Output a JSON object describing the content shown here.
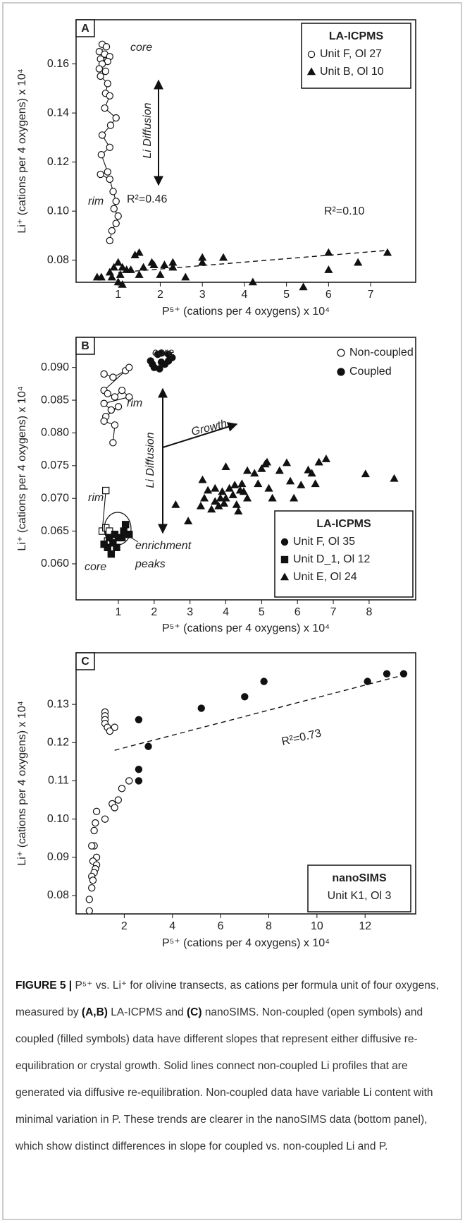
{
  "caption": {
    "label": "FIGURE 5 |",
    "text1": "P⁵⁺ vs. Li⁺ for olivine transects, as cations per formula unit of four oxygens, measured by",
    "bold1": "(A,B)",
    "text2": "LA-ICPMS and",
    "bold2": "(C)",
    "text3": "nanoSIMS. Non-coupled (open symbols) and coupled (filled symbols) data have different slopes that represent either diffusive re-equilibration or crystal growth. Solid lines connect non-coupled Li profiles that are generated via diffusive re-equilibration. Non-coupled data have variable Li content with minimal variation in P. These trends are clearer in the nanoSIMS data (bottom panel), which show distinct differences in slope for coupled vs. non-coupled Li and P."
  },
  "chart_data": [
    {
      "type": "scatter",
      "panel_label": "A",
      "x_label": "P⁵⁺ (cations per 4 oxygens) x 10⁴",
      "y_label": "Li⁺ (cations per 4 oxygens) x 10⁴",
      "xlim": [
        0,
        8.07
      ],
      "ylim": [
        0.071,
        0.178
      ],
      "xticks": [
        1,
        2,
        3,
        4,
        5,
        6,
        7
      ],
      "yticks": [
        0.08,
        {
          "value": 0.1,
          "label": "0.10"
        },
        0.12,
        0.14,
        0.16
      ],
      "legend": {
        "title": "LA-ICPMS",
        "markers": true
      },
      "series": [
        {
          "name": "Unit F, Ol 27",
          "marker": "circle",
          "connect_open": true,
          "open": {
            "x": [
              0.62,
              0.72,
              0.55,
              0.68,
              0.8,
              0.58,
              0.75,
              0.62,
              0.55,
              0.7,
              0.58,
              0.75,
              0.7,
              0.8,
              0.68,
              0.95,
              0.82,
              0.62,
              0.8,
              0.6,
              0.75,
              0.58,
              0.8,
              0.88,
              0.95,
              0.9,
              1.0,
              0.95,
              0.85,
              0.8
            ],
            "y": [
              0.168,
              0.167,
              0.165,
              0.164,
              0.163,
              0.162,
              0.161,
              0.16,
              0.158,
              0.157,
              0.155,
              0.152,
              0.148,
              0.147,
              0.142,
              0.138,
              0.135,
              0.131,
              0.126,
              0.123,
              0.116,
              0.115,
              0.113,
              0.108,
              0.104,
              0.101,
              0.098,
              0.095,
              0.092,
              0.088
            ]
          }
        },
        {
          "name": "Unit B, Ol 10",
          "marker": "triangle",
          "filled": {
            "x": [
              0.5,
              0.6,
              0.8,
              0.85,
              0.9,
              1.0,
              1.0,
              1.05,
              1.1,
              1.2,
              1.1,
              1.3,
              1.4,
              1.5,
              1.6,
              1.5,
              1.8,
              1.85,
              2.0,
              2.1,
              2.3,
              2.3,
              2.6,
              3.0,
              3.0,
              3.5,
              4.2,
              5.4,
              6.0,
              6.0,
              6.7,
              7.4
            ],
            "y": [
              0.073,
              0.073,
              0.075,
              0.073,
              0.077,
              0.079,
              0.071,
              0.074,
              0.077,
              0.076,
              0.07,
              0.076,
              0.082,
              0.083,
              0.077,
              0.074,
              0.079,
              0.078,
              0.074,
              0.078,
              0.079,
              0.077,
              0.073,
              0.081,
              0.079,
              0.081,
              0.071,
              0.069,
              0.083,
              0.076,
              0.079,
              0.083
            ]
          }
        }
      ],
      "trend": {
        "x": [
          1.0,
          7.4
        ],
        "y": [
          0.075,
          0.084
        ]
      },
      "annotations": [
        "core",
        "rim",
        "R²=0.46",
        "R²=0.10",
        "Li Diffusion"
      ]
    },
    {
      "type": "scatter",
      "panel_label": "B",
      "x_label": "P⁵⁺ (cations per 4 oxygens) x 10⁴",
      "y_label": "Li⁺ (cations per 4 oxygens) x 10⁴",
      "xlim": [
        -0.18,
        9.3
      ],
      "ylim": [
        0.0545,
        0.0946
      ],
      "xticks": [
        1,
        2,
        3,
        4,
        5,
        6,
        7,
        8
      ],
      "yticks": [
        {
          "value": 0.06,
          "label": "0.060"
        },
        0.065,
        {
          "value": 0.07,
          "label": "0.070"
        },
        0.075,
        {
          "value": 0.08,
          "label": "0.080"
        },
        0.085,
        {
          "value": 0.09,
          "label": "0.090"
        }
      ],
      "legend": {
        "title": "LA-ICPMS",
        "markers": true
      },
      "fill_legend": [
        "Non-coupled",
        "Coupled"
      ],
      "series": [
        {
          "name": "Unit F, Ol 35",
          "marker": "circle",
          "connect_open": true,
          "open": {
            "x": [
              0.6,
              0.85,
              1.2,
              1.3,
              0.6,
              0.7,
              0.9,
              1.1,
              1.3,
              0.6,
              0.8,
              1.0,
              0.65,
              0.6,
              0.9,
              0.85
            ],
            "y": [
              0.089,
              0.0885,
              0.0895,
              0.09,
              0.0865,
              0.086,
              0.0855,
              0.0865,
              0.0855,
              0.0845,
              0.0835,
              0.084,
              0.0825,
              0.0818,
              0.0812,
              0.0785
            ]
          },
          "filled": {
            "x": [
              1.9,
              2.1,
              2.2,
              2.4,
              1.95,
              2.3,
              2.5,
              2.0,
              2.15,
              2.4,
              2.2
            ],
            "y": [
              0.091,
              0.092,
              0.0922,
              0.092,
              0.0905,
              0.0905,
              0.0915,
              0.09,
              0.0898,
              0.091,
              0.0908
            ]
          }
        },
        {
          "name": "Unit D_1, Ol 12",
          "marker": "square",
          "connect_open": true,
          "open": {
            "x": [
              0.65,
              0.55,
              0.65,
              0.75,
              0.7
            ],
            "y": [
              0.0712,
              0.065,
              0.0655,
              0.065,
              0.0635
            ]
          },
          "filled": {
            "x": [
              0.6,
              0.7,
              0.8,
              0.85,
              0.95,
              1.0,
              1.1,
              1.15,
              1.2,
              1.3,
              0.75,
              0.9
            ],
            "y": [
              0.063,
              0.0625,
              0.0615,
              0.0632,
              0.0625,
              0.064,
              0.064,
              0.065,
              0.066,
              0.0645,
              0.064,
              0.0645
            ]
          }
        },
        {
          "name": "Unit E, Ol 24",
          "marker": "triangle",
          "filled": {
            "x": [
              2.6,
              2.95,
              3.3,
              3.35,
              3.4,
              3.5,
              3.6,
              3.7,
              3.7,
              3.8,
              3.85,
              3.9,
              3.95,
              4.0,
              4.0,
              4.1,
              4.2,
              4.25,
              4.3,
              4.35,
              4.4,
              4.45,
              4.5,
              4.6,
              4.6,
              4.8,
              4.9,
              5.0,
              5.1,
              5.15,
              5.2,
              5.3,
              5.5,
              5.7,
              5.8,
              5.9,
              6.1,
              6.3,
              6.4,
              6.5,
              6.6,
              6.8,
              7.9,
              8.7
            ],
            "y": [
              0.069,
              0.0665,
              0.0688,
              0.0728,
              0.07,
              0.0712,
              0.0683,
              0.0695,
              0.0715,
              0.0688,
              0.07,
              0.071,
              0.0692,
              0.0748,
              0.07,
              0.0715,
              0.0705,
              0.072,
              0.069,
              0.068,
              0.0712,
              0.0722,
              0.071,
              0.07,
              0.0742,
              0.0738,
              0.0722,
              0.0745,
              0.0752,
              0.0755,
              0.0715,
              0.07,
              0.0742,
              0.0754,
              0.0726,
              0.07,
              0.072,
              0.0743,
              0.0738,
              0.0722,
              0.0755,
              0.076,
              0.0737,
              0.073
            ]
          }
        }
      ],
      "annotations": [
        "core",
        "rim",
        "rim",
        "core",
        "enrichment",
        "peaks",
        "Growth",
        "Li Diffusion"
      ]
    },
    {
      "type": "scatter",
      "panel_label": "C",
      "x_label": "P⁵⁺ (cations per 4 oxygens) x 10⁴",
      "y_label": "Li⁺ (cations per 4 oxygens) x 10⁴",
      "xlim": [
        0,
        14.1
      ],
      "ylim": [
        0.0752,
        0.1435
      ],
      "xticks": [
        2,
        4,
        6,
        8,
        10,
        12
      ],
      "yticks": [
        0.08,
        0.09,
        {
          "value": 0.1,
          "label": "0.10"
        },
        0.11,
        0.12,
        0.13
      ],
      "legend": {
        "title": "nanoSIMS",
        "markers": false
      },
      "series": [
        {
          "name": "Unit K1, Ol 3",
          "marker": "circle",
          "open": {
            "x": [
              1.2,
              1.2,
              1.2,
              1.2,
              1.3,
              1.6,
              1.4,
              2.2,
              1.9,
              1.75,
              1.5,
              1.6,
              1.2,
              0.85,
              0.8,
              0.75,
              0.75,
              0.65,
              0.85,
              0.7,
              0.85,
              0.8,
              0.75,
              0.65,
              0.7,
              0.65,
              0.55,
              0.55
            ],
            "y": [
              0.128,
              0.127,
              0.126,
              0.125,
              0.124,
              0.124,
              0.123,
              0.11,
              0.108,
              0.105,
              0.104,
              0.103,
              0.1,
              0.102,
              0.099,
              0.097,
              0.093,
              0.093,
              0.09,
              0.089,
              0.088,
              0.087,
              0.086,
              0.085,
              0.084,
              0.082,
              0.079,
              0.076
            ]
          },
          "filled": {
            "x": [
              2.6,
              2.6,
              2.6,
              3.0,
              5.2,
              7.0,
              7.8,
              12.1,
              12.9,
              13.6
            ],
            "y": [
              0.126,
              0.113,
              0.11,
              0.119,
              0.129,
              0.132,
              0.136,
              0.136,
              0.138,
              0.138
            ]
          }
        }
      ],
      "trend": {
        "x": [
          1.6,
          13.8
        ],
        "y": [
          0.118,
          0.138
        ]
      },
      "annotations": [
        "R²=0.73"
      ]
    }
  ]
}
